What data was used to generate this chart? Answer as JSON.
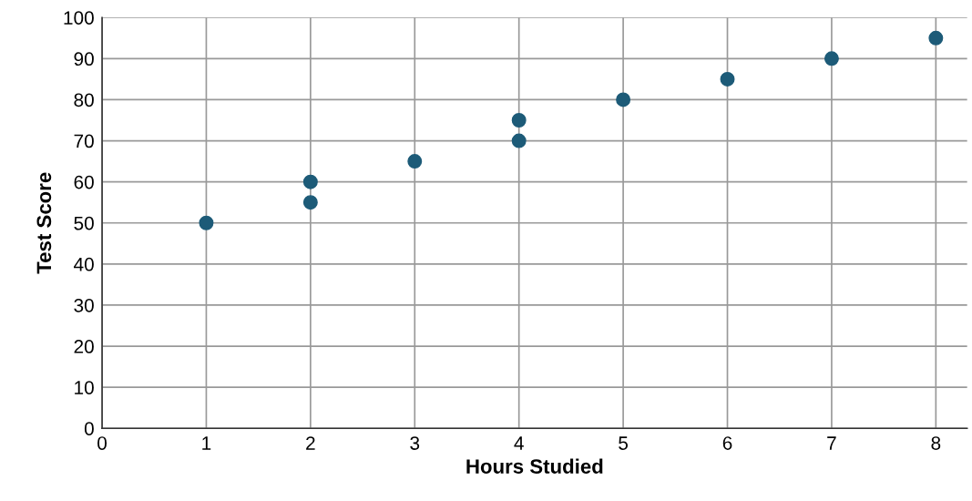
{
  "chart_data": {
    "type": "scatter",
    "xlabel": "Hours Studied",
    "ylabel": "Test Score",
    "x": [
      1,
      2,
      2,
      3,
      4,
      4,
      5,
      6,
      7,
      8
    ],
    "series": [
      {
        "color": "#1d5b78",
        "values": [
          50,
          55,
          60,
          65,
          70,
          75,
          80,
          85,
          90,
          95
        ]
      }
    ],
    "xlim": [
      0,
      8.3
    ],
    "xticks": [
      0,
      1,
      2,
      3,
      4,
      5,
      6,
      7,
      8
    ],
    "ylim": [
      0,
      100
    ],
    "yticks": [
      0,
      10,
      20,
      30,
      40,
      50,
      60,
      70,
      80,
      90,
      100
    ],
    "grid": true,
    "marker": "circle"
  }
}
